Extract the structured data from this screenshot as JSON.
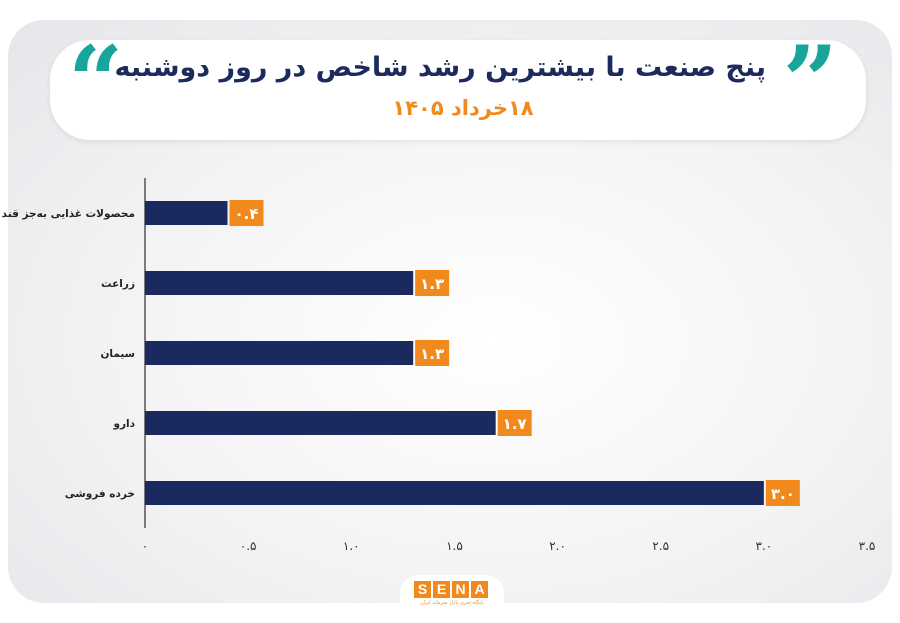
{
  "header": {
    "title": "پنج صنعت با بیشترین رشد شاخص در روز دوشنبه",
    "subtitle": "۱۸خرداد ۱۴۰۵"
  },
  "colors": {
    "bar": "#1a2a5e",
    "label_bg": "#f08a1c",
    "accent_quote": "#1aa59c"
  },
  "icons": [
    "quote-open-icon",
    "quote-close-icon"
  ],
  "chart_data": {
    "type": "bar",
    "orientation": "horizontal",
    "categories": [
      "محصولات غذایی به‌جز قند",
      "زراعت",
      "سیمان",
      "دارو",
      "خرده فروشی"
    ],
    "values": [
      0.4,
      1.3,
      1.3,
      1.7,
      3.0
    ],
    "value_labels": [
      "۰.۴",
      "۱.۳",
      "۱.۳",
      "۱.۷",
      "۳.۰"
    ],
    "xlim": [
      0,
      3.5
    ],
    "ticks": [
      0,
      0.5,
      1.0,
      1.5,
      2.0,
      2.5,
      3.0,
      3.5
    ],
    "tick_labels": [
      "۰",
      "۰.۵",
      "۱.۰",
      "۱.۵",
      "۲.۰",
      "۲.۵",
      "۳.۰",
      "۳.۵"
    ],
    "grid": false,
    "legend": "none"
  },
  "logo": {
    "letters": [
      "S",
      "E",
      "N",
      "A"
    ],
    "tagline": "پایگاه خبری بازار سرمایه ایران"
  }
}
